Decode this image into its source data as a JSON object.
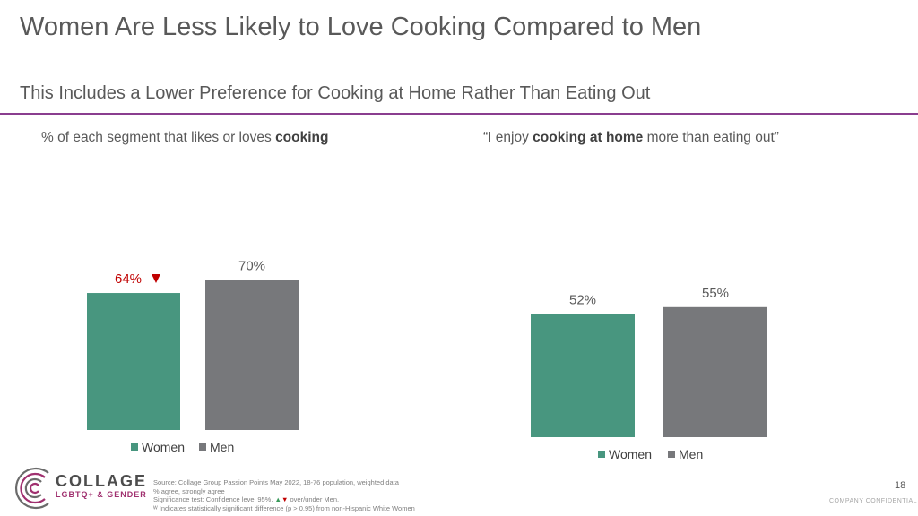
{
  "header": {
    "title": "Women Are Less Likely to Love Cooking Compared to Men",
    "subtitle": "This Includes a Lower Preference for Cooking at Home Rather Than Eating Out"
  },
  "left_label": {
    "pre": "% of each segment that likes or loves ",
    "bold": "cooking",
    "post": ""
  },
  "right_label": {
    "pre": "“I enjoy ",
    "bold": "cooking at home",
    "post": " more than eating out”"
  },
  "colors": {
    "women": "#48967f",
    "men": "#77787b",
    "accent": "#8a3d8f",
    "sig": "#c00000"
  },
  "chart_data": [
    {
      "type": "bar",
      "categories": [
        "Women",
        "Men"
      ],
      "values": [
        64,
        70
      ],
      "labels": [
        "64%",
        "70%"
      ],
      "significance": [
        "down",
        null
      ],
      "legend": [
        "Women",
        "Men"
      ]
    },
    {
      "type": "bar",
      "categories": [
        "Women",
        "Men"
      ],
      "values": [
        52,
        55
      ],
      "labels": [
        "52%",
        "55%"
      ],
      "significance": [
        null,
        null
      ],
      "legend": [
        "Women",
        "Men"
      ]
    }
  ],
  "brand": {
    "name": "COLLAGE",
    "sub": "LGBTQ+ & GENDER"
  },
  "footnotes": {
    "source": "Source: Collage Group Passion Points May 2022, 18-76 population, weighted data",
    "agree": "% agree, strongly agree",
    "sig_prefix": "Significance test: Confidence level 95%.",
    "sig_up": "▲",
    "sig_down": "▼",
    "sig_suffix": " over/under Men.",
    "w_note": "ᵂ Indicates statistically significant difference (p > 0.95) from non-Hispanic White Women"
  },
  "page_number": "18",
  "confidential": "COMPANY CONFIDENTIAL"
}
